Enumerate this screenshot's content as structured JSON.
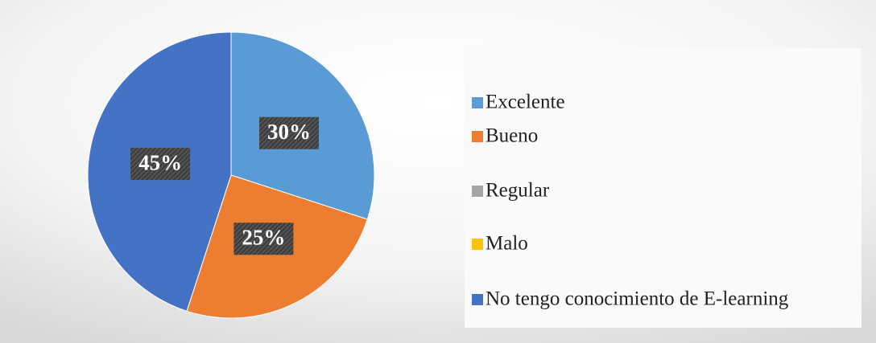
{
  "chart_data": {
    "type": "pie",
    "categories": [
      "Excelente",
      "Bueno",
      "Regular",
      "Malo",
      "No tengo conocimiento de E-learning"
    ],
    "values": [
      30,
      25,
      0,
      0,
      45
    ],
    "value_labels": [
      "30%",
      "25%",
      null,
      null,
      "45%"
    ],
    "colors": [
      "#5b9bd5",
      "#ed7d31",
      "#a5a5a5",
      "#ffc000",
      "#4472c4"
    ],
    "legend": "right"
  }
}
